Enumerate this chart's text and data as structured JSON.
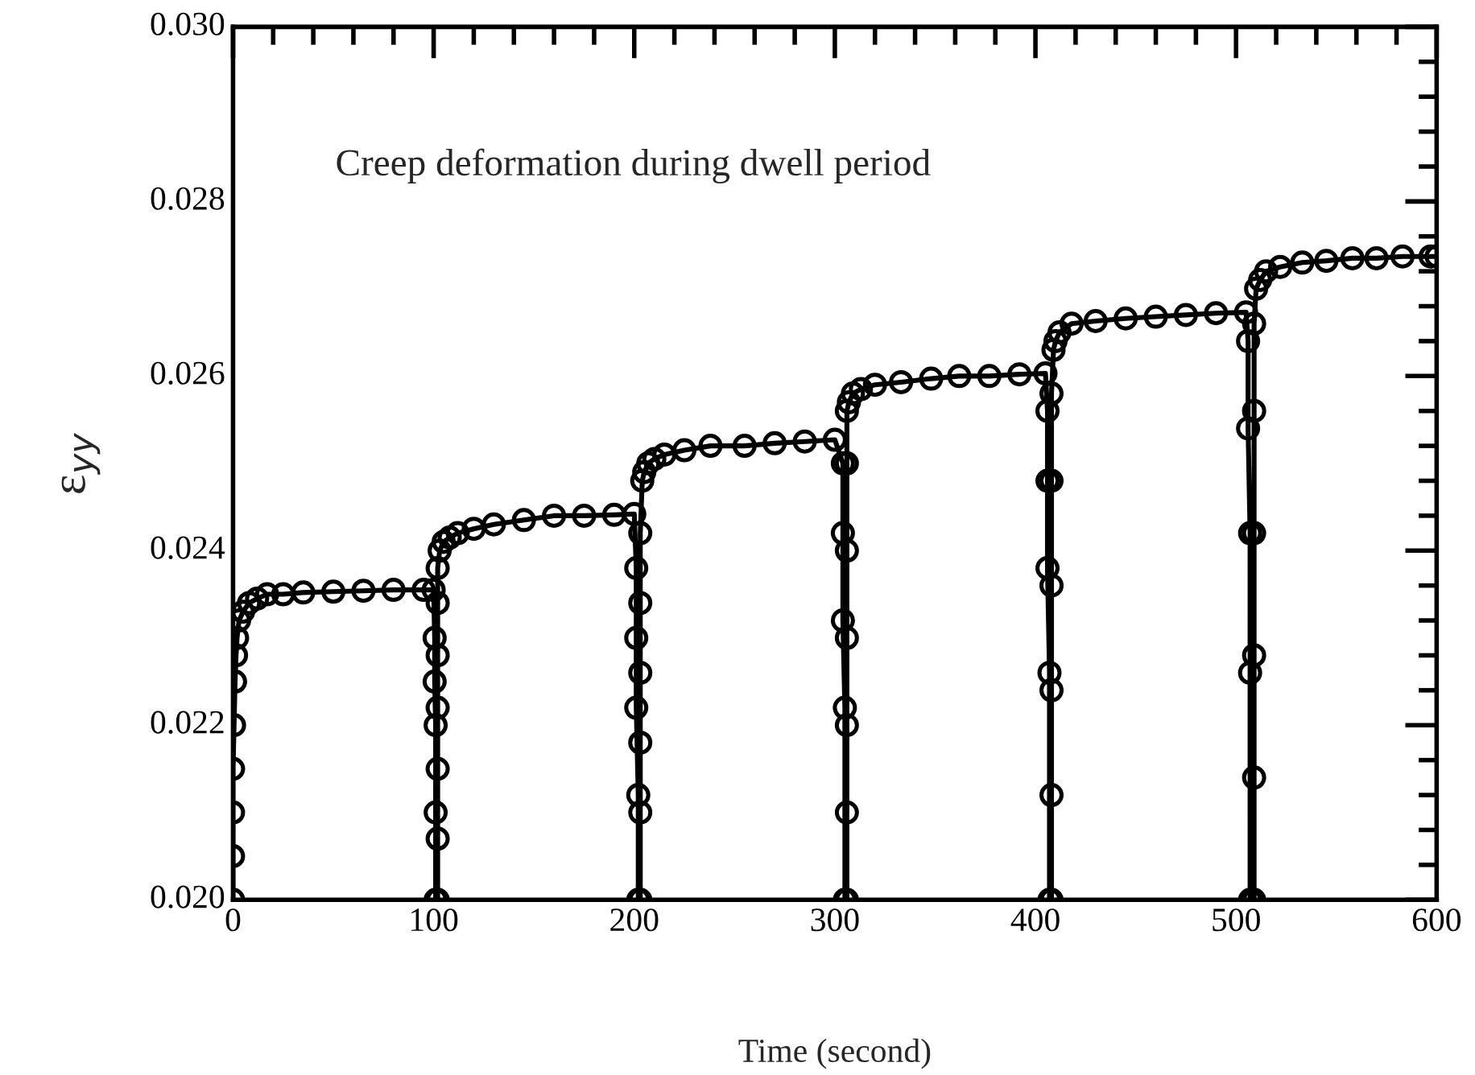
{
  "chart_data": {
    "type": "line",
    "xlabel": "Time (second)",
    "ylabel": "ε$_{yy}$",
    "annotations": [
      "Creep deformation during dwell period"
    ],
    "xlim": [
      0,
      600
    ],
    "xticks": [
      0,
      100,
      200,
      300,
      400,
      500,
      600
    ],
    "ylim": [
      0.02,
      0.03
    ],
    "yticks": [
      {
        "value": 0.02,
        "label": "0.020"
      },
      {
        "value": 0.022,
        "label": "0.022"
      },
      {
        "value": 0.024,
        "label": "0.024"
      },
      {
        "value": 0.026,
        "label": "0.026"
      },
      {
        "value": 0.028,
        "label": "0.028"
      },
      {
        "value": 0.03,
        "label": "0.030"
      }
    ],
    "grid": false,
    "legend": false,
    "marker": "circle",
    "line_style": "solid",
    "series": [
      {
        "color": "#000000",
        "x": [
          0,
          0,
          0,
          0,
          0.5,
          1,
          1.5,
          2,
          3,
          5,
          8,
          12,
          17,
          25,
          35,
          50,
          65,
          80,
          95,
          100,
          100.5,
          100.5,
          101,
          101,
          101,
          102,
          102,
          102,
          102,
          102,
          102,
          102,
          103,
          105,
          108,
          112,
          120,
          130,
          145,
          160,
          175,
          190,
          200,
          201,
          201,
          201,
          202,
          202,
          203,
          203,
          203,
          203,
          203,
          203,
          204,
          205,
          207,
          210,
          215,
          225,
          238,
          255,
          270,
          285,
          300,
          304,
          304,
          304,
          305,
          305,
          306,
          306,
          306,
          306,
          306,
          306,
          306,
          307,
          309,
          313,
          320,
          333,
          348,
          362,
          377,
          392,
          405,
          406,
          406,
          406,
          407,
          407,
          408,
          408,
          408,
          408,
          408,
          408,
          409,
          410,
          412,
          418,
          430,
          445,
          460,
          475,
          490,
          505,
          506,
          506,
          507,
          507,
          507,
          509,
          509,
          509,
          509,
          509,
          509,
          510,
          512,
          515,
          522,
          533,
          545,
          558,
          570,
          583,
          597,
          600
        ],
        "values": [
          0.02,
          0.0205,
          0.021,
          0.0215,
          0.022,
          0.0225,
          0.0228,
          0.023,
          0.0232,
          0.0233,
          0.0234,
          0.02345,
          0.0235,
          0.0235,
          0.02352,
          0.02353,
          0.02354,
          0.02355,
          0.02355,
          0.02355,
          0.023,
          0.0225,
          0.022,
          0.021,
          0.02,
          0.02,
          0.0207,
          0.0215,
          0.0222,
          0.0228,
          0.0234,
          0.0238,
          0.024,
          0.0241,
          0.02415,
          0.0242,
          0.02425,
          0.0243,
          0.02435,
          0.0244,
          0.0244,
          0.02441,
          0.02442,
          0.0238,
          0.023,
          0.0222,
          0.0212,
          0.02,
          0.02,
          0.021,
          0.0218,
          0.0226,
          0.0234,
          0.0242,
          0.0248,
          0.0249,
          0.025,
          0.02505,
          0.0251,
          0.02515,
          0.0252,
          0.0252,
          0.02523,
          0.02525,
          0.02527,
          0.025,
          0.0242,
          0.0232,
          0.0222,
          0.02,
          0.02,
          0.021,
          0.022,
          0.023,
          0.024,
          0.025,
          0.0256,
          0.0257,
          0.0258,
          0.02585,
          0.0259,
          0.02593,
          0.02597,
          0.026,
          0.026,
          0.02602,
          0.02603,
          0.0256,
          0.0248,
          0.0238,
          0.0226,
          0.02,
          0.02,
          0.0212,
          0.0224,
          0.0236,
          0.0248,
          0.0258,
          0.0263,
          0.0264,
          0.0265,
          0.0266,
          0.02663,
          0.02666,
          0.02668,
          0.0267,
          0.02672,
          0.02673,
          0.0264,
          0.0254,
          0.0242,
          0.0226,
          0.02,
          0.02,
          0.0214,
          0.0228,
          0.0242,
          0.0256,
          0.0266,
          0.027,
          0.0271,
          0.0272,
          0.02725,
          0.0273,
          0.02732,
          0.02735,
          0.02735,
          0.02737,
          0.02737,
          0.02737
        ]
      }
    ]
  }
}
